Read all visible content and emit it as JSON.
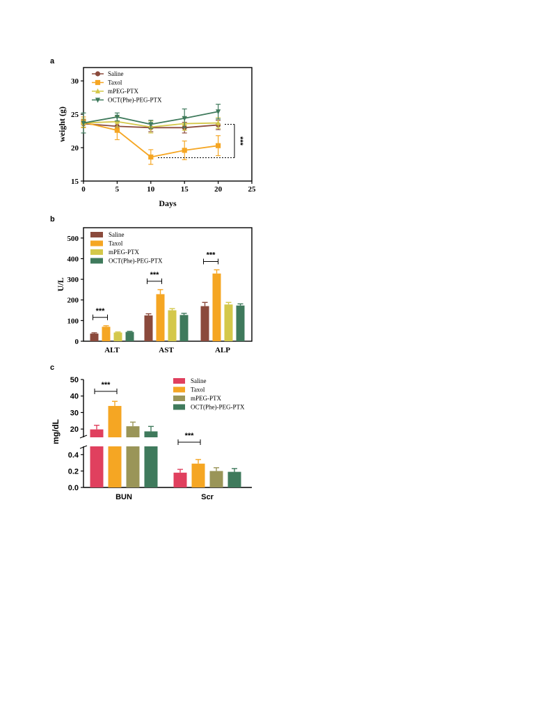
{
  "chart_data": [
    {
      "panel": "a",
      "type": "line",
      "xlabel": "Days",
      "ylabel": "weight (g)",
      "xlim": [
        0,
        25
      ],
      "ylim": [
        15,
        32
      ],
      "xticks": [
        "0",
        "5",
        "10",
        "15",
        "20",
        "25"
      ],
      "yticks": [
        "15",
        "20",
        "25",
        "30"
      ],
      "legend_position": "top-left",
      "x": [
        0,
        5,
        10,
        15,
        20
      ],
      "series": [
        {
          "name": "Saline",
          "color": "#8b4a3c",
          "marker": "circle",
          "values": [
            23.6,
            23.2,
            23.0,
            23.0,
            23.4
          ],
          "errors": [
            0.6,
            0.7,
            0.6,
            0.8,
            0.7
          ]
        },
        {
          "name": "Taxol",
          "color": "#f5a623",
          "marker": "square",
          "values": [
            23.8,
            22.6,
            18.6,
            19.6,
            20.3
          ],
          "errors": [
            0.8,
            1.4,
            1.1,
            1.4,
            1.5
          ]
        },
        {
          "name": "mPEG-PTX",
          "color": "#d4c84a",
          "marker": "triangle-up",
          "values": [
            23.7,
            23.9,
            23.1,
            23.6,
            23.7
          ],
          "errors": [
            0.6,
            0.8,
            0.9,
            1.0,
            0.8
          ]
        },
        {
          "name": "OCT(Phe)-PEG-PTX",
          "color": "#3f7a5c",
          "marker": "triangle-down",
          "values": [
            23.7,
            24.6,
            23.5,
            24.4,
            25.4
          ],
          "errors": [
            1.5,
            0.6,
            0.6,
            1.4,
            1.1
          ]
        }
      ],
      "significance": "***"
    },
    {
      "panel": "b",
      "type": "bar",
      "ylabel": "U/L",
      "ylim": [
        0,
        550
      ],
      "yticks": [
        "0",
        "100",
        "200",
        "300",
        "400",
        "500"
      ],
      "categories": [
        "ALT",
        "AST",
        "ALP"
      ],
      "legend_position": "top-left",
      "series": [
        {
          "name": "Saline",
          "color": "#8b4a3c",
          "values": [
            37,
            125,
            170
          ],
          "errors": [
            4,
            8,
            18
          ]
        },
        {
          "name": "Taxol",
          "color": "#f5a623",
          "values": [
            70,
            228,
            328
          ],
          "errors": [
            5,
            22,
            18
          ]
        },
        {
          "name": "mPEG-PTX",
          "color": "#d4c84a",
          "values": [
            42,
            150,
            178
          ],
          "errors": [
            3,
            8,
            10
          ]
        },
        {
          "name": "OCT(Phe)-PEG-PTX",
          "color": "#3f7a5c",
          "values": [
            45,
            127,
            173
          ],
          "errors": [
            3,
            8,
            8
          ]
        }
      ],
      "significance": [
        "***",
        "***",
        "***"
      ]
    },
    {
      "panel": "c",
      "type": "bar",
      "ylabel": "mg/dL",
      "axis_break": true,
      "upper_ylim": [
        15,
        50
      ],
      "upper_yticks": [
        "20",
        "30",
        "40",
        "50"
      ],
      "lower_ylim": [
        0,
        0.5
      ],
      "lower_yticks": [
        "0.0",
        "0.2",
        "0.4"
      ],
      "categories": [
        "BUN",
        "Scr"
      ],
      "legend_position": "top-right",
      "series": [
        {
          "name": "Saline",
          "color": "#e0405e",
          "values": [
            19.8,
            0.18
          ],
          "errors": [
            2.5,
            0.04
          ]
        },
        {
          "name": "Taxol",
          "color": "#f5a623",
          "values": [
            34.0,
            0.29
          ],
          "errors": [
            2.8,
            0.05
          ]
        },
        {
          "name": "mPEG-PTX",
          "color": "#9a9558",
          "values": [
            21.7,
            0.2
          ],
          "errors": [
            2.5,
            0.04
          ]
        },
        {
          "name": "OCT(Phe)-PEG-PTX",
          "color": "#3f7a5c",
          "values": [
            18.6,
            0.19
          ],
          "errors": [
            3.0,
            0.04
          ]
        }
      ],
      "significance": [
        "***",
        "***"
      ]
    }
  ]
}
